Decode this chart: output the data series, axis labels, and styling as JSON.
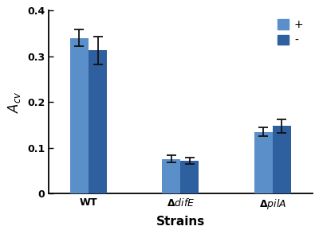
{
  "categories": [
    "WT",
    "ΔdifE",
    "ΔpilA"
  ],
  "values_plus": [
    0.34,
    0.076,
    0.135
  ],
  "values_minus": [
    0.313,
    0.071,
    0.148
  ],
  "errors_plus": [
    0.018,
    0.008,
    0.01
  ],
  "errors_minus": [
    0.03,
    0.007,
    0.015
  ],
  "color_plus": "#5b8fc9",
  "color_minus": "#2e5f9e",
  "ylabel": "$A_{cv}$",
  "xlabel": "Strains",
  "ylim": [
    0,
    0.4
  ],
  "yticks": [
    0,
    0.1,
    0.2,
    0.3,
    0.4
  ],
  "ytick_labels": [
    "0",
    "0.1",
    "0.2",
    "0.3",
    "0.4"
  ],
  "legend_labels": [
    "+",
    "-"
  ],
  "bar_width": 0.3,
  "group_positions": [
    1.0,
    2.5,
    4.0
  ],
  "background_color": "#ffffff",
  "ecolor": "#111111"
}
